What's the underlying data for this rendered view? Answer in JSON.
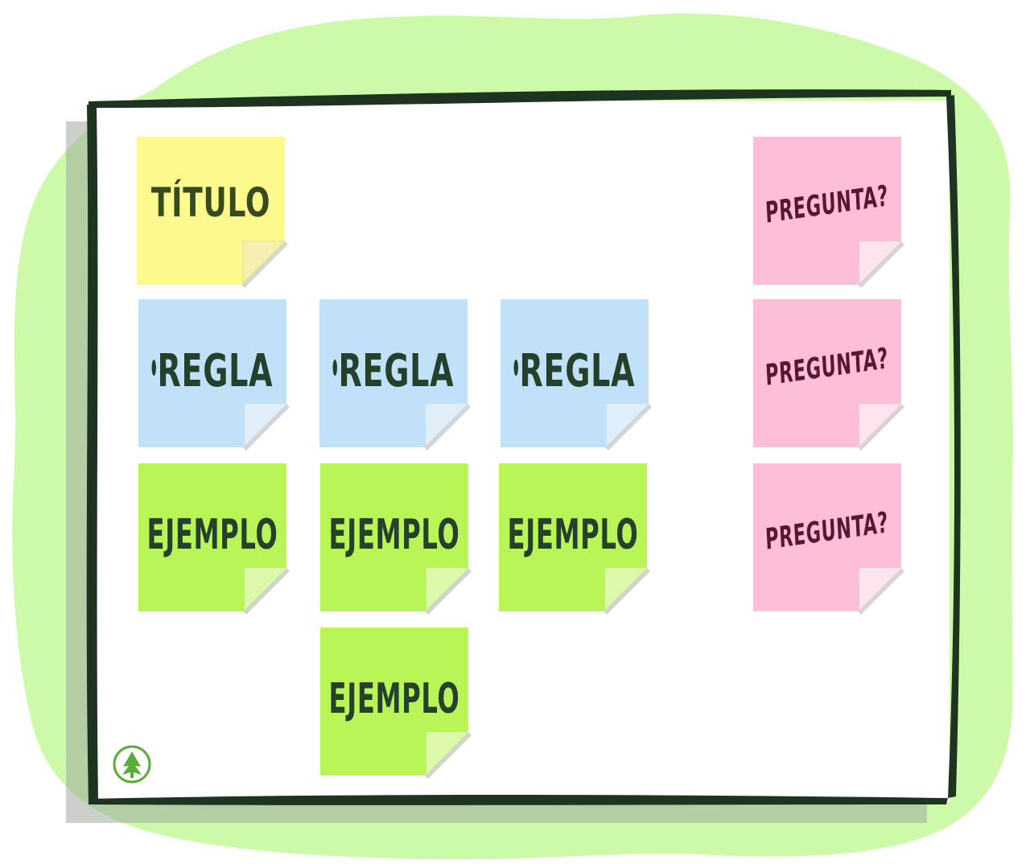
{
  "colors": {
    "blob": "#ccfaa8",
    "frame": "#1f3321",
    "title_note": "#fcfa8c",
    "rule_note": "#c0e1f8",
    "example_note": "#baf558",
    "question_note": "#fdbfd8",
    "logo": "#5aac38"
  },
  "notes": {
    "title": "TÍTULO",
    "rules": [
      {
        "text": "REGLA"
      },
      {
        "text": "REGLA"
      },
      {
        "text": "REGLA"
      }
    ],
    "examples": [
      {
        "text": "EJEMPLO"
      },
      {
        "text": "EJEMPLO"
      },
      {
        "text": "EJEMPLO"
      },
      {
        "text": "EJEMPLO"
      }
    ],
    "questions": [
      {
        "text": "PREGUNTA?"
      },
      {
        "text": "PREGUNTA?"
      },
      {
        "text": "PREGUNTA?"
      }
    ]
  },
  "icons": {
    "logo": "tree-icon",
    "bullet": "bullet-circle-icon"
  }
}
